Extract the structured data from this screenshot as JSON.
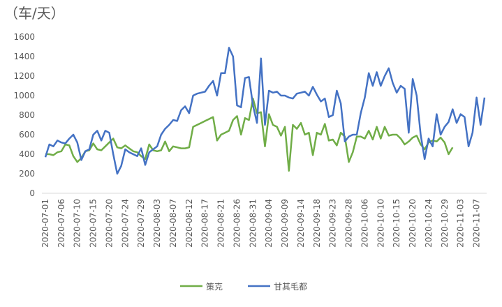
{
  "chart_data": {
    "type": "line",
    "title": "（车/天）",
    "categories": [
      "2020-07-01",
      null,
      null,
      null,
      "2020-07-06",
      null,
      null,
      null,
      "2020-07-10",
      null,
      null,
      null,
      "2020-07-15",
      null,
      null,
      null,
      "2020-07-20",
      null,
      null,
      null,
      "2020-07-24",
      null,
      null,
      null,
      "2020-07-29",
      null,
      null,
      null,
      "2020-08-03",
      null,
      null,
      null,
      "2020-08-07",
      null,
      null,
      null,
      "2020-08-12",
      null,
      null,
      null,
      "2020-08-17",
      null,
      null,
      null,
      "2020-08-21",
      null,
      null,
      null,
      "2020-08-26",
      null,
      null,
      null,
      "2020-08-31",
      null,
      null,
      null,
      "2020-09-04",
      null,
      null,
      null,
      "2020-09-09",
      null,
      null,
      null,
      "2020-09-14",
      null,
      null,
      null,
      "2020-09-18",
      null,
      null,
      null,
      "2020-09-23",
      null,
      null,
      null,
      "2020-09-28",
      null,
      null,
      null,
      "2020-10-06",
      null,
      null,
      null,
      "2020-10-10",
      null,
      null,
      null,
      "2020-10-15",
      null,
      null,
      null,
      "2020-10-20",
      null,
      null,
      null,
      "2020-10-24",
      null,
      null,
      null,
      "2020-10-29",
      null,
      null,
      null,
      "2020-11-03",
      null,
      null,
      null,
      "2020-11-07",
      null,
      null
    ],
    "series": [
      {
        "name": "策克",
        "color": "#70ad47",
        "values": [
          400,
          400,
          390,
          420,
          430,
          500,
          490,
          380,
          320,
          360,
          430,
          440,
          510,
          450,
          440,
          480,
          520,
          560,
          470,
          460,
          490,
          460,
          430,
          420,
          380,
          350,
          500,
          440,
          430,
          440,
          530,
          430,
          480,
          470,
          460,
          460,
          470,
          680,
          700,
          720,
          740,
          760,
          780,
          540,
          600,
          620,
          640,
          750,
          790,
          600,
          770,
          750,
          970,
          820,
          830,
          480,
          810,
          700,
          680,
          590,
          680,
          230,
          700,
          660,
          720,
          600,
          620,
          390,
          620,
          600,
          710,
          540,
          550,
          490,
          620,
          580,
          320,
          420,
          580,
          580,
          560,
          640,
          550,
          680,
          560,
          680,
          590,
          600,
          600,
          560,
          500,
          530,
          570,
          590,
          500,
          450,
          520,
          540,
          530,
          570,
          520,
          400,
          470,
          null,
          null,
          null,
          null,
          null,
          null,
          null,
          null
        ]
      },
      {
        "name": "甘其毛都",
        "color": "#4472c4",
        "values": [
          370,
          500,
          480,
          540,
          520,
          510,
          560,
          600,
          520,
          340,
          430,
          450,
          600,
          640,
          540,
          640,
          620,
          400,
          200,
          280,
          450,
          420,
          400,
          380,
          460,
          290,
          420,
          450,
          480,
          600,
          660,
          700,
          750,
          740,
          850,
          890,
          820,
          1000,
          1020,
          1030,
          1040,
          1100,
          1150,
          1000,
          1230,
          1230,
          1490,
          1400,
          900,
          880,
          1180,
          1190,
          900,
          720,
          1380,
          700,
          1050,
          1030,
          1040,
          1000,
          1000,
          980,
          970,
          1020,
          1030,
          1040,
          1000,
          1090,
          1010,
          940,
          970,
          780,
          800,
          1050,
          920,
          530,
          580,
          600,
          600,
          820,
          980,
          1230,
          1100,
          1240,
          1100,
          1200,
          1280,
          1130,
          1030,
          1100,
          1070,
          620,
          1170,
          1000,
          600,
          350,
          560,
          480,
          810,
          600,
          680,
          730,
          860,
          720,
          810,
          780,
          480,
          620,
          980,
          700,
          980
        ]
      }
    ],
    "ylim": [
      0,
      1600
    ],
    "yticks": [
      0,
      200,
      400,
      600,
      800,
      1000,
      1200,
      1400,
      1600
    ]
  }
}
